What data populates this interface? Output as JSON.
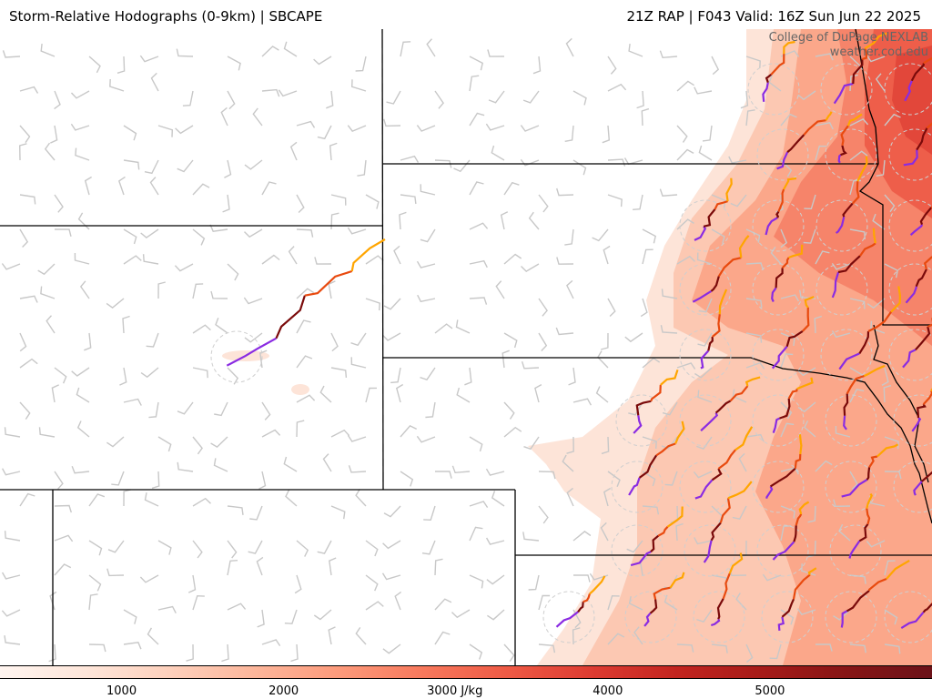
{
  "header": {
    "left_title": "Storm-Relative Hodographs (0-9km) | SBCAPE",
    "right_title": "21Z RAP | F043 Valid: 16Z Sun Jun 22 2025"
  },
  "credit": {
    "line1": "College of DuPage NEXLAB",
    "line2": "weather.cod.edu"
  },
  "colorbar": {
    "ticks": [
      {
        "label": "1000",
        "value": 1000
      },
      {
        "label": "2000",
        "value": 2000
      },
      {
        "label": "3000 J/kg",
        "value": 3000
      },
      {
        "label": "4000",
        "value": 4000
      },
      {
        "label": "5000",
        "value": 5000
      }
    ],
    "range": [
      250,
      6000
    ],
    "colors": [
      "#fff5f0",
      "#fee6da",
      "#fdd0bc",
      "#fcb69b",
      "#fc9a7b",
      "#f7785c",
      "#ee5a45",
      "#dd3b31",
      "#c2241f",
      "#a61b18",
      "#861516",
      "#6b1219"
    ]
  },
  "map": {
    "wind_barb_color": "#c8c8c8",
    "hodograph_colors": [
      "#8a2be2",
      "#7a0a0a",
      "#e84a0f",
      "#ffa500"
    ],
    "border_color": "#000000"
  }
}
